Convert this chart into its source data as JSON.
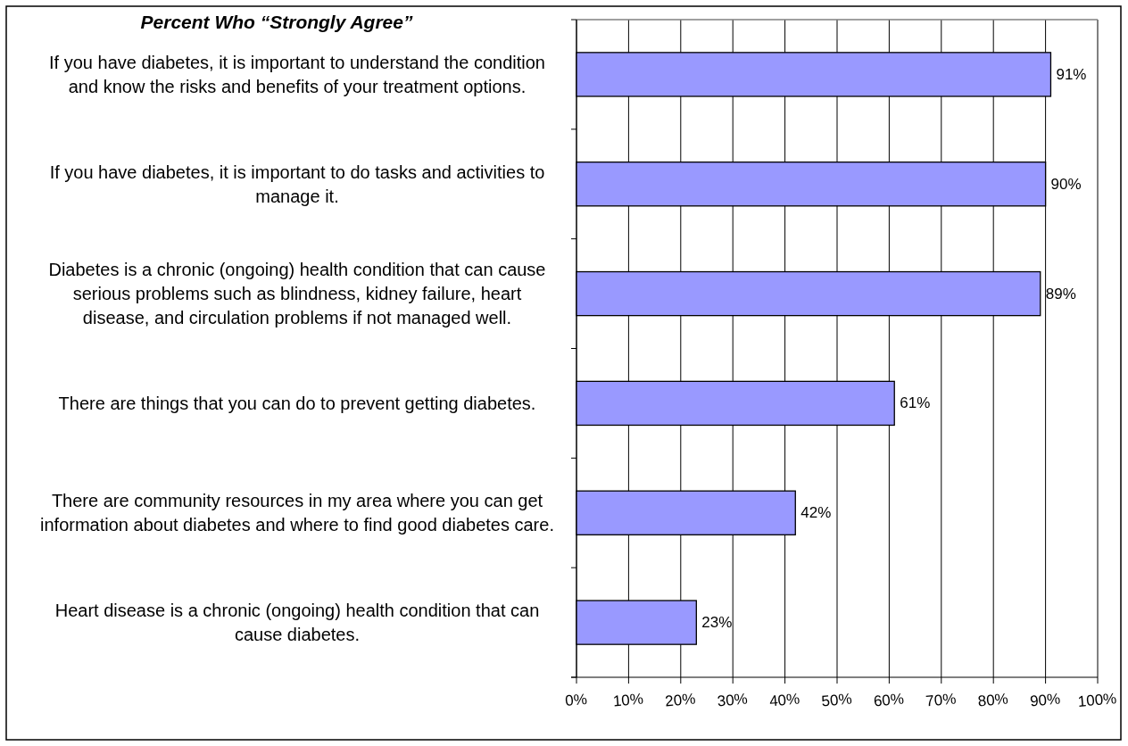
{
  "chart_data": {
    "type": "bar",
    "orientation": "horizontal",
    "title": "Percent Who “Strongly Agree”",
    "categories": [
      "If you have diabetes, it is important to understand the condition and know the risks and benefits of your treatment options.",
      "If you have diabetes, it is important to do tasks and activities to manage it.",
      "Diabetes is a chronic (ongoing) health condition that can cause serious problems such as blindness, kidney failure, heart disease, and circulation problems if not managed well.",
      "There are things that you can do to prevent getting diabetes.",
      "There are community resources in my area where you can get information about diabetes and where to find good diabetes care.",
      "Heart disease is a chronic (ongoing) health condition that can cause diabetes."
    ],
    "values": [
      91,
      90,
      89,
      61,
      42,
      23
    ],
    "color": "#9999ff",
    "value_labels": [
      "91%",
      "90%",
      "89%",
      "61%",
      "42%",
      "23%"
    ],
    "xlim": [
      0,
      100
    ],
    "xticks": [
      {
        "value": 0,
        "label": "0%"
      },
      {
        "value": 10,
        "label": "10%"
      },
      {
        "value": 20,
        "label": "20%"
      },
      {
        "value": 30,
        "label": "30%"
      },
      {
        "value": 40,
        "label": "40%"
      },
      {
        "value": 50,
        "label": "50%"
      },
      {
        "value": 60,
        "label": "60%"
      },
      {
        "value": 70,
        "label": "70%"
      },
      {
        "value": 80,
        "label": "80%"
      },
      {
        "value": 90,
        "label": "90%"
      },
      {
        "value": 100,
        "label": "100%"
      }
    ],
    "grid": "x"
  }
}
